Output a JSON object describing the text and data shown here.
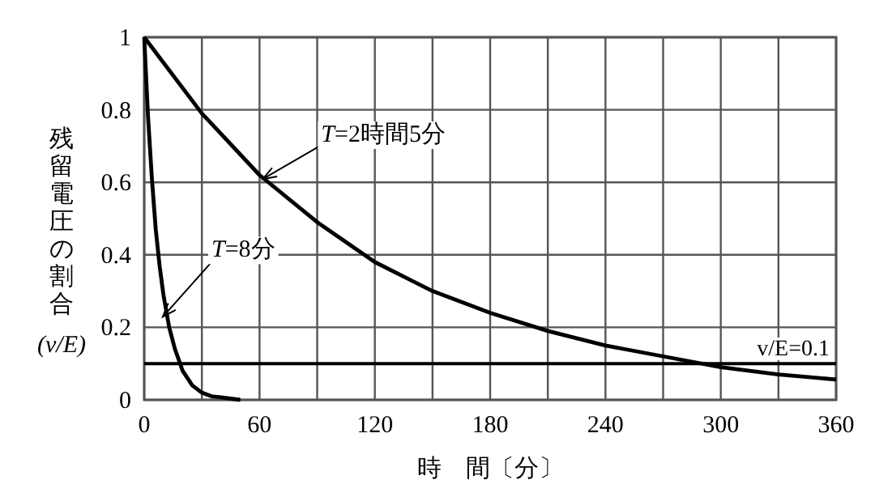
{
  "chart_data": {
    "type": "line",
    "xlabel": "時　間〔分〕",
    "ylabel": "残留電圧の割合(v/E)",
    "xlim": [
      0,
      360
    ],
    "ylim": [
      0,
      1
    ],
    "xticks": [
      0,
      {
        "value": 30,
        "label": null
      },
      60,
      {
        "value": 90,
        "label": null
      },
      120,
      {
        "value": 150,
        "label": null
      },
      180,
      {
        "value": 210,
        "label": null
      },
      240,
      {
        "value": 270,
        "label": null
      },
      300,
      {
        "value": 330,
        "label": null
      },
      360
    ],
    "yticks": [
      0,
      0.2,
      0.4,
      0.6,
      0.8,
      1
    ],
    "grid": true,
    "marker": "none",
    "line_style": "solid",
    "series": [
      {
        "color": "#000000",
        "x": [
          0,
          30,
          60,
          90,
          120,
          150,
          180,
          210,
          240,
          270,
          300,
          330,
          360
        ],
        "values": [
          1,
          0.79,
          0.62,
          0.49,
          0.38,
          0.3,
          0.24,
          0.19,
          0.15,
          0.12,
          0.09,
          0.07,
          0.056
        ]
      },
      {
        "color": "#000000",
        "x": [
          0,
          2,
          4,
          6,
          8,
          10,
          13,
          16,
          20,
          25,
          30,
          35,
          40,
          50
        ],
        "values": [
          1,
          0.78,
          0.61,
          0.47,
          0.37,
          0.29,
          0.2,
          0.14,
          0.08,
          0.04,
          0.02,
          0.01,
          0.007,
          0
        ]
      }
    ],
    "ref_lines": [
      {
        "axis": "y",
        "value": 0.1,
        "label": "v/E=0.1",
        "color": "#000000"
      }
    ],
    "annotations": [
      {
        "text": "T=2時間5分",
        "x": 60,
        "y": 0.6
      },
      {
        "text": "T=8分",
        "x": 8,
        "y": 0.22
      }
    ]
  }
}
